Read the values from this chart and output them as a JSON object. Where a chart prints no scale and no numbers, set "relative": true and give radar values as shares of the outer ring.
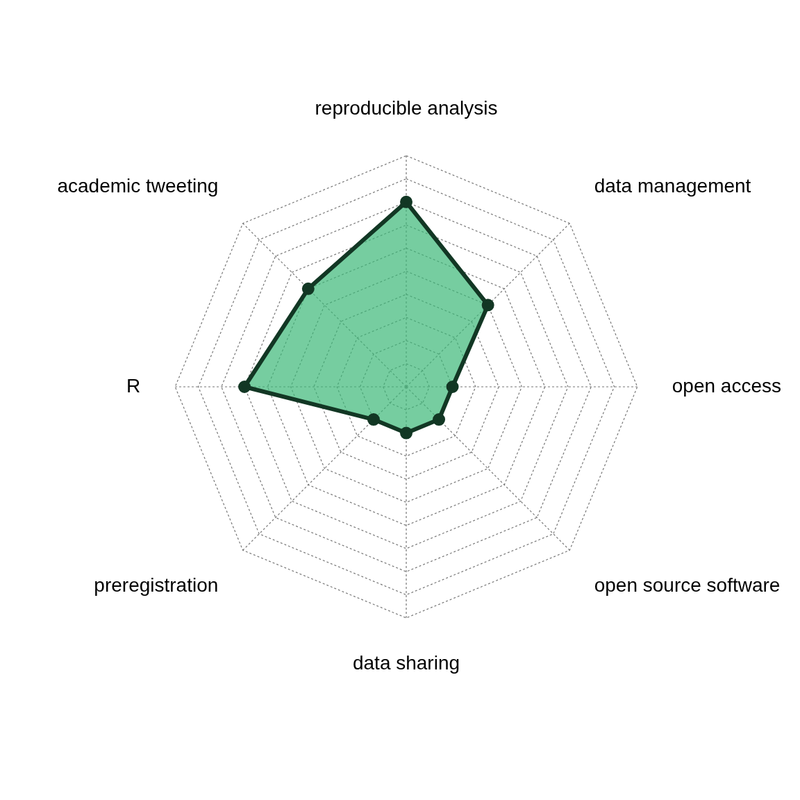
{
  "chart_data": {
    "type": "radar",
    "categories": [
      "reproducible analysis",
      "data management",
      "open access",
      "open source software",
      "data sharing",
      "preregistration",
      "R",
      "academic tweeting"
    ],
    "series": [
      {
        "color": "#3cb878",
        "values": [
          0.8,
          0.5,
          0.2,
          0.2,
          0.2,
          0.2,
          0.7,
          0.6
        ]
      }
    ],
    "relative": true,
    "grid": true,
    "marker": "circle",
    "line_style": "solid"
  }
}
